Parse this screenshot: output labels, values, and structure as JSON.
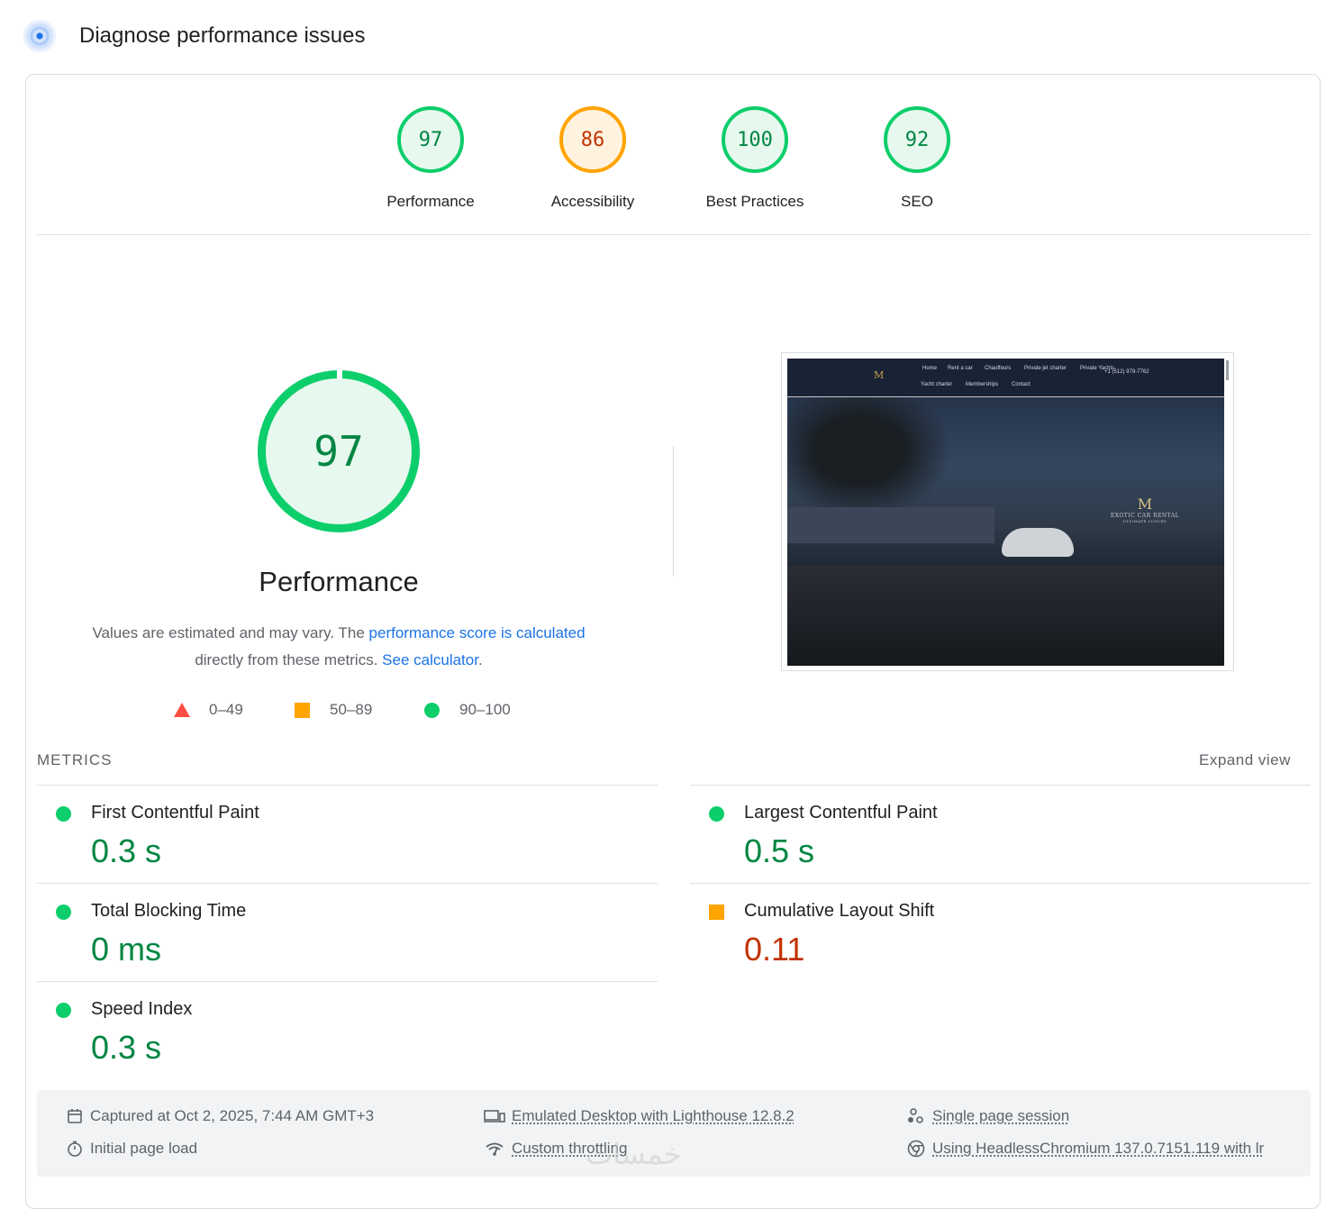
{
  "header": {
    "title": "Diagnose performance issues"
  },
  "gauges": [
    {
      "score": "97",
      "label": "Performance",
      "status": "pass"
    },
    {
      "score": "86",
      "label": "Accessibility",
      "status": "average"
    },
    {
      "score": "100",
      "label": "Best Practices",
      "status": "pass"
    },
    {
      "score": "92",
      "label": "SEO",
      "status": "pass"
    }
  ],
  "performance": {
    "score": "97",
    "title": "Performance",
    "desc_prefix": "Values are estimated and may vary. The ",
    "desc_link": "performance score is calculated",
    "desc_middle": "directly from these metrics.",
    "desc_calc_link": "See calculator",
    "desc_suffix": "."
  },
  "legend": [
    {
      "range": "0–49",
      "shape": "triangle",
      "color": "#ff4e42"
    },
    {
      "range": "50–89",
      "shape": "square",
      "color": "#ffa400"
    },
    {
      "range": "90–100",
      "shape": "circle",
      "color": "#0cce6b"
    }
  ],
  "screenshot": {
    "logo": "M",
    "nav_links": [
      "Home",
      "Rent a car",
      "Chauffeurs",
      "Private jet charter",
      "Private Yachts",
      "Yacht charter",
      "Memberships",
      "Contact"
    ],
    "phone": "+1 (512) 979-7762",
    "brand_mark": "M",
    "brand_text": "EXOTIC CAR RENTAL",
    "brand_sub": "ULTIMATE LUXURY"
  },
  "metrics": {
    "heading": "METRICS",
    "expand_label": "Expand view",
    "items": [
      {
        "name": "First Contentful Paint",
        "value": "0.3 s",
        "status": "pass"
      },
      {
        "name": "Largest Contentful Paint",
        "value": "0.5 s",
        "status": "pass"
      },
      {
        "name": "Total Blocking Time",
        "value": "0 ms",
        "status": "pass"
      },
      {
        "name": "Cumulative Layout Shift",
        "value": "0.11",
        "status": "average"
      },
      {
        "name": "Speed Index",
        "value": "0.3 s",
        "status": "pass"
      }
    ]
  },
  "footer": {
    "captured": "Captured at Oct 2, 2025, 7:44 AM GMT+3",
    "load": "Initial page load",
    "emulated": "Emulated Desktop with Lighthouse 12.8.2",
    "throttling": "Custom throttling",
    "session": "Single page session",
    "browser": "Using HeadlessChromium 137.0.7151.119 with lr"
  },
  "colors": {
    "pass": "#0cce6b",
    "average": "#ffa400",
    "fail": "#ff4e42",
    "link": "#1a73e8"
  },
  "watermark": "خمسات"
}
